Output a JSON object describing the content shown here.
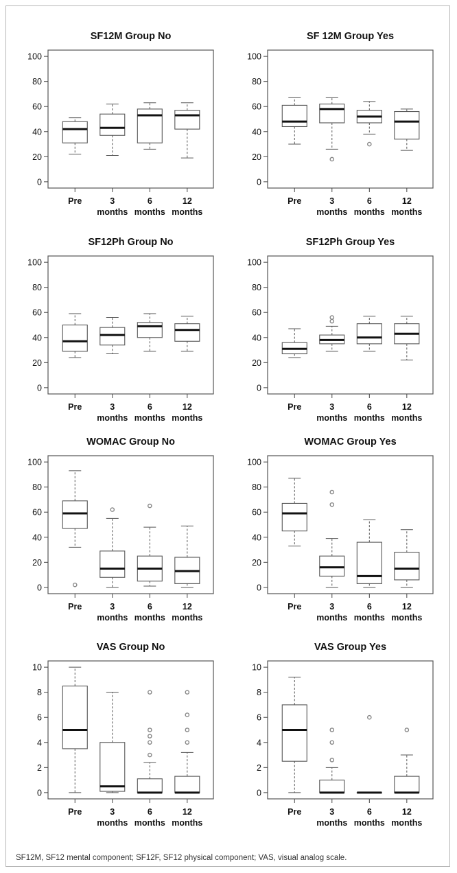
{
  "chart_data": [
    {
      "type": "boxplot",
      "title": "SF12M Group No",
      "categories": [
        [
          "Pre"
        ],
        [
          "3",
          "months"
        ],
        [
          "6",
          "months"
        ],
        [
          "12",
          "months"
        ]
      ],
      "yticks": [
        0,
        20,
        40,
        60,
        80,
        100
      ],
      "ylim": [
        -5,
        105
      ],
      "boxes": [
        {
          "low": 22,
          "q1": 31,
          "median": 42,
          "q3": 48,
          "high": 51,
          "outliers": []
        },
        {
          "low": 21,
          "q1": 37,
          "median": 43,
          "q3": 54,
          "high": 62,
          "outliers": []
        },
        {
          "low": 26,
          "q1": 31,
          "median": 53,
          "q3": 58,
          "high": 63,
          "outliers": []
        },
        {
          "low": 19,
          "q1": 42,
          "median": 53,
          "q3": 57,
          "high": 63,
          "outliers": []
        }
      ]
    },
    {
      "type": "boxplot",
      "title": "SF 12M Group Yes",
      "categories": [
        [
          "Pre"
        ],
        [
          "3",
          "months"
        ],
        [
          "6",
          "months"
        ],
        [
          "12",
          "months"
        ]
      ],
      "yticks": [
        0,
        20,
        40,
        60,
        80,
        100
      ],
      "ylim": [
        -5,
        105
      ],
      "boxes": [
        {
          "low": 30,
          "q1": 44,
          "median": 48,
          "q3": 61,
          "high": 67,
          "outliers": []
        },
        {
          "low": 26,
          "q1": 47,
          "median": 58,
          "q3": 62,
          "high": 67,
          "outliers": [
            18
          ]
        },
        {
          "low": 38,
          "q1": 47,
          "median": 52,
          "q3": 57,
          "high": 64,
          "outliers": [
            30
          ]
        },
        {
          "low": 25,
          "q1": 34,
          "median": 48,
          "q3": 56,
          "high": 58,
          "outliers": []
        }
      ]
    },
    {
      "type": "boxplot",
      "title": "SF12Ph Group No",
      "categories": [
        [
          "Pre"
        ],
        [
          "3",
          "months"
        ],
        [
          "6",
          "months"
        ],
        [
          "12",
          "months"
        ]
      ],
      "yticks": [
        0,
        20,
        40,
        60,
        80,
        100
      ],
      "ylim": [
        -5,
        105
      ],
      "boxes": [
        {
          "low": 24,
          "q1": 29,
          "median": 37,
          "q3": 50,
          "high": 59,
          "outliers": []
        },
        {
          "low": 27,
          "q1": 34,
          "median": 42,
          "q3": 48,
          "high": 56,
          "outliers": []
        },
        {
          "low": 29,
          "q1": 40,
          "median": 49,
          "q3": 52,
          "high": 59,
          "outliers": []
        },
        {
          "low": 29,
          "q1": 37,
          "median": 46,
          "q3": 51,
          "high": 57,
          "outliers": []
        }
      ]
    },
    {
      "type": "boxplot",
      "title": "SF12Ph Group Yes",
      "categories": [
        [
          "Pre"
        ],
        [
          "3",
          "months"
        ],
        [
          "6",
          "months"
        ],
        [
          "12",
          "months"
        ]
      ],
      "yticks": [
        0,
        20,
        40,
        60,
        80,
        100
      ],
      "ylim": [
        -5,
        105
      ],
      "boxes": [
        {
          "low": 24,
          "q1": 27,
          "median": 31,
          "q3": 36,
          "high": 47,
          "outliers": []
        },
        {
          "low": 29,
          "q1": 35,
          "median": 38,
          "q3": 42,
          "high": 49,
          "outliers": [
            53,
            56
          ]
        },
        {
          "low": 29,
          "q1": 35,
          "median": 40,
          "q3": 51,
          "high": 57,
          "outliers": []
        },
        {
          "low": 22,
          "q1": 35,
          "median": 43,
          "q3": 51,
          "high": 57,
          "outliers": []
        }
      ]
    },
    {
      "type": "boxplot",
      "title": "WOMAC Group No",
      "categories": [
        [
          "Pre"
        ],
        [
          "3",
          "months"
        ],
        [
          "6",
          "months"
        ],
        [
          "12",
          "months"
        ]
      ],
      "yticks": [
        0,
        20,
        40,
        60,
        80,
        100
      ],
      "ylim": [
        -5,
        105
      ],
      "boxes": [
        {
          "low": 32,
          "q1": 47,
          "median": 59,
          "q3": 69,
          "high": 93,
          "outliers": [
            2
          ]
        },
        {
          "low": 0,
          "q1": 8,
          "median": 15,
          "q3": 29,
          "high": 55,
          "outliers": [
            62
          ]
        },
        {
          "low": 1,
          "q1": 5,
          "median": 15,
          "q3": 25,
          "high": 48,
          "outliers": [
            65
          ]
        },
        {
          "low": 0,
          "q1": 3,
          "median": 13,
          "q3": 24,
          "high": 49,
          "outliers": []
        }
      ]
    },
    {
      "type": "boxplot",
      "title": "WOMAC Group Yes",
      "categories": [
        [
          "Pre"
        ],
        [
          "3",
          "months"
        ],
        [
          "6",
          "months"
        ],
        [
          "12",
          "months"
        ]
      ],
      "yticks": [
        0,
        20,
        40,
        60,
        80,
        100
      ],
      "ylim": [
        -5,
        105
      ],
      "boxes": [
        {
          "low": 33,
          "q1": 45,
          "median": 59,
          "q3": 67,
          "high": 87,
          "outliers": []
        },
        {
          "low": 0,
          "q1": 9,
          "median": 16,
          "q3": 25,
          "high": 39,
          "outliers": [
            66,
            76
          ]
        },
        {
          "low": 0,
          "q1": 3,
          "median": 9,
          "q3": 36,
          "high": 54,
          "outliers": []
        },
        {
          "low": 0,
          "q1": 6,
          "median": 15,
          "q3": 28,
          "high": 46,
          "outliers": []
        }
      ]
    },
    {
      "type": "boxplot",
      "title": "VAS Group No",
      "categories": [
        [
          "Pre"
        ],
        [
          "3",
          "months"
        ],
        [
          "6",
          "months"
        ],
        [
          "12",
          "months"
        ]
      ],
      "yticks": [
        0,
        2,
        4,
        6,
        8,
        10
      ],
      "ylim": [
        -0.5,
        10.5
      ],
      "boxes": [
        {
          "low": 0,
          "q1": 3.5,
          "median": 5,
          "q3": 8.5,
          "high": 10,
          "outliers": []
        },
        {
          "low": 0,
          "q1": 0.1,
          "median": 0.5,
          "q3": 4,
          "high": 8,
          "outliers": []
        },
        {
          "low": 0,
          "q1": 0,
          "median": 0,
          "q3": 1.1,
          "high": 2.4,
          "outliers": [
            3,
            4,
            4.5,
            5,
            8
          ]
        },
        {
          "low": 0,
          "q1": 0,
          "median": 0,
          "q3": 1.3,
          "high": 3.2,
          "outliers": [
            4,
            5,
            6.2,
            8
          ]
        }
      ]
    },
    {
      "type": "boxplot",
      "title": "VAS Group Yes",
      "categories": [
        [
          "Pre"
        ],
        [
          "3",
          "months"
        ],
        [
          "6",
          "months"
        ],
        [
          "12",
          "months"
        ]
      ],
      "yticks": [
        0,
        2,
        4,
        6,
        8,
        10
      ],
      "ylim": [
        -0.5,
        10.5
      ],
      "boxes": [
        {
          "low": 0,
          "q1": 2.5,
          "median": 5,
          "q3": 7,
          "high": 9.2,
          "outliers": []
        },
        {
          "low": 0,
          "q1": 0,
          "median": 0,
          "q3": 1,
          "high": 2,
          "outliers": [
            2.6,
            4,
            5
          ]
        },
        {
          "low": 0,
          "q1": 0,
          "median": 0,
          "q3": 0,
          "high": 0,
          "outliers": [
            6
          ]
        },
        {
          "low": 0,
          "q1": 0,
          "median": 0,
          "q3": 1.3,
          "high": 3,
          "outliers": [
            5
          ]
        }
      ]
    }
  ],
  "caption": "SF12M, SF12 mental component; SF12F, SF12 physical component; VAS, visual analog scale."
}
